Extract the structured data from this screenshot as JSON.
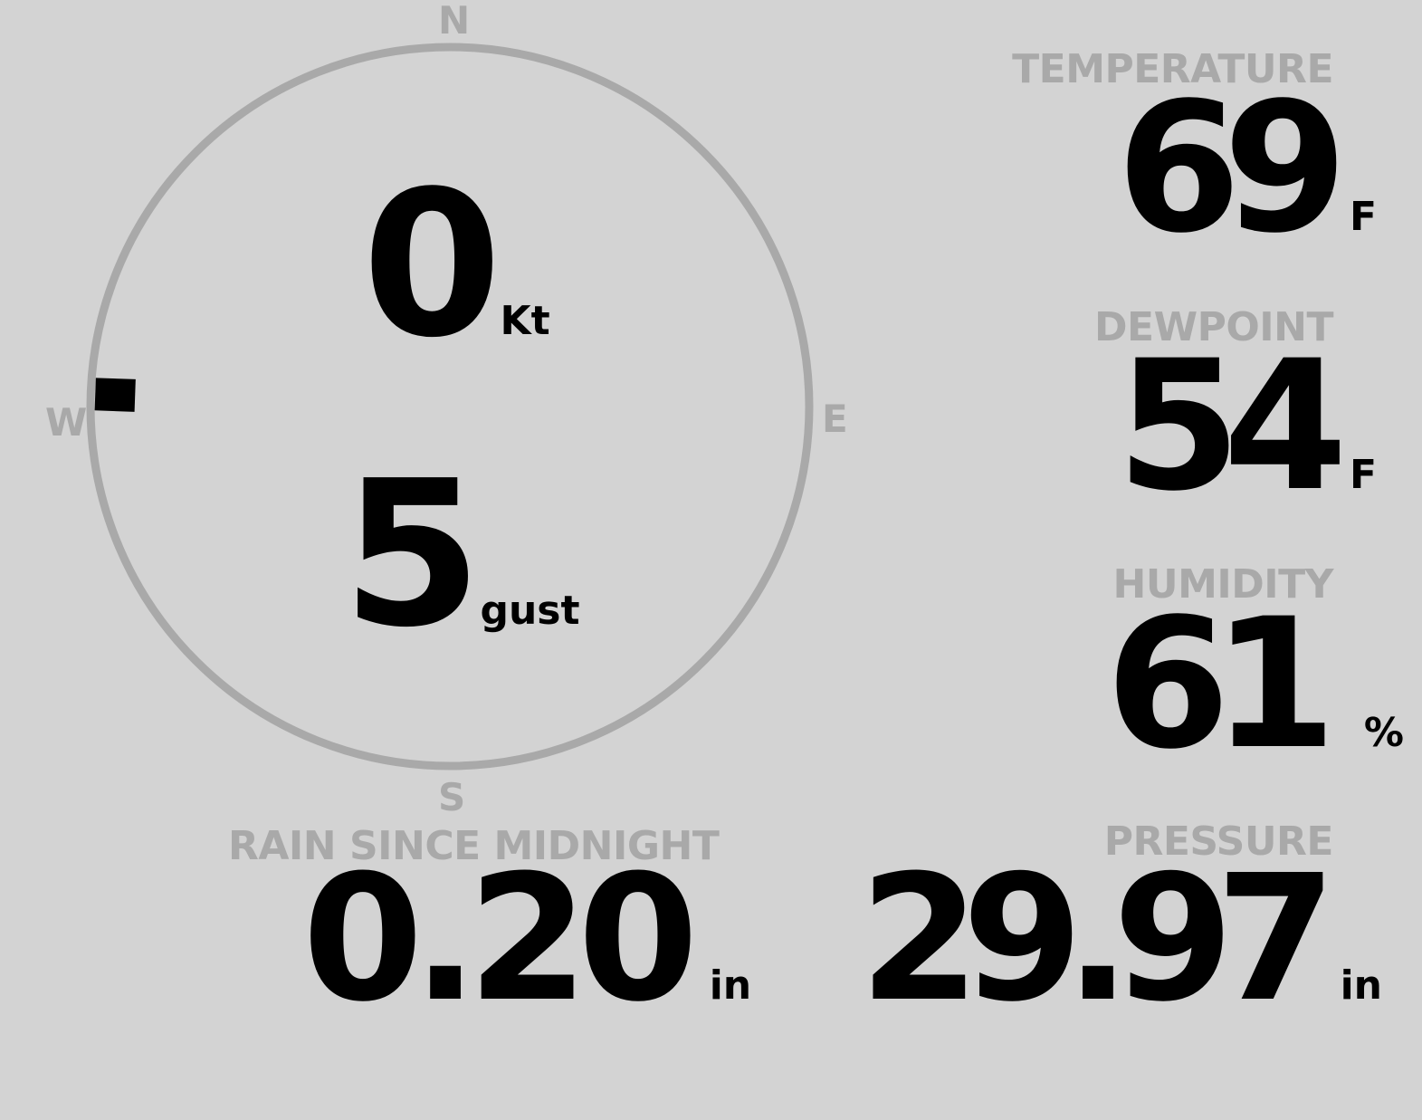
{
  "wind": {
    "cardinals": {
      "n": "N",
      "e": "E",
      "s": "S",
      "w": "W"
    },
    "speed": "0",
    "speed_unit": "Kt",
    "gust": "5",
    "gust_unit": "gust",
    "direction_deg": 272
  },
  "temperature": {
    "label": "TEMPERATURE",
    "value": "69",
    "unit": "F"
  },
  "dewpoint": {
    "label": "DEWPOINT",
    "value": "54",
    "unit": "F"
  },
  "humidity": {
    "label": "HUMIDITY",
    "value": "61",
    "unit": "%"
  },
  "rain": {
    "label": "RAIN SINCE MIDNIGHT",
    "value": "0.20",
    "unit": "in"
  },
  "pressure": {
    "label": "PRESSURE",
    "value": "29.97",
    "unit": "in"
  },
  "colors": {
    "background": "#d3d3d3",
    "muted": "#a9a9a9",
    "text": "#000000"
  }
}
